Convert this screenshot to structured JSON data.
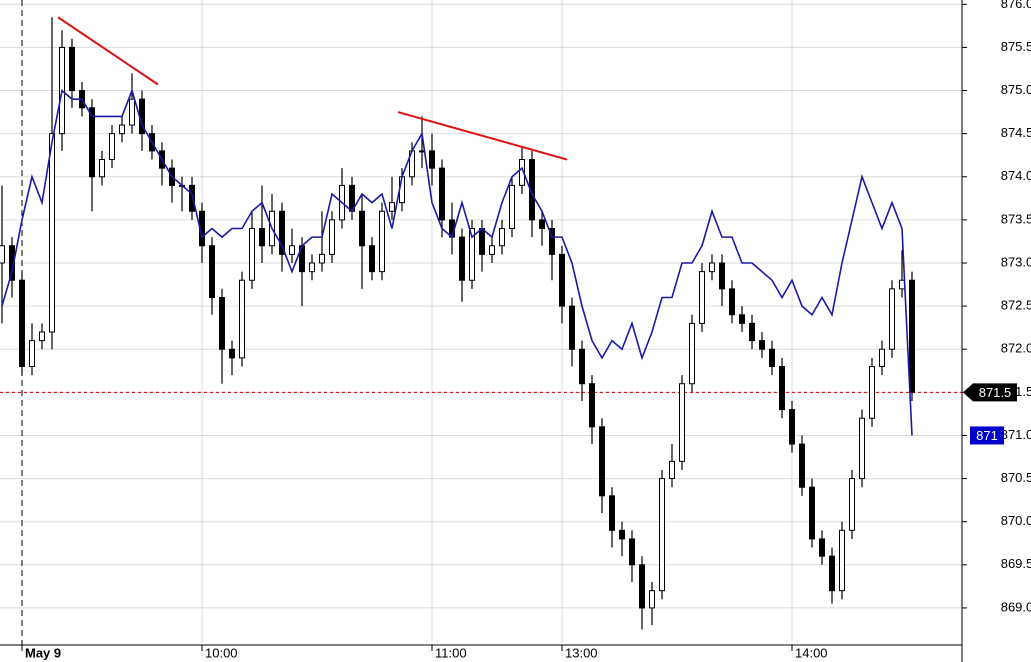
{
  "chart_data": {
    "type": "candlestick",
    "categories": [
      null,
      null,
      "May 9",
      null,
      null,
      null,
      null,
      null,
      null,
      null,
      null,
      null,
      null,
      null,
      null,
      null,
      null,
      null,
      null,
      null,
      "10:00",
      null,
      null,
      null,
      null,
      null,
      null,
      null,
      null,
      null,
      null,
      null,
      null,
      null,
      null,
      null,
      null,
      null,
      null,
      null,
      null,
      null,
      null,
      "11:00",
      null,
      null,
      null,
      null,
      null,
      null,
      null,
      null,
      null,
      null,
      null,
      null,
      "13:00",
      null,
      null,
      null,
      null,
      null,
      null,
      null,
      null,
      null,
      null,
      null,
      null,
      null,
      null,
      null,
      null,
      null,
      null,
      null,
      null,
      null,
      null,
      "14:00",
      null,
      null,
      null,
      null,
      null,
      null,
      null,
      null,
      null,
      null,
      null,
      null
    ],
    "ohlc": {
      "open": [
        873.0,
        873.2,
        872.8,
        871.8,
        872.1,
        872.2,
        874.5,
        875.5,
        875.0,
        874.8,
        874.0,
        874.2,
        874.5,
        874.6,
        874.9,
        874.5,
        874.3,
        874.1,
        873.9,
        873.9,
        873.6,
        873.2,
        872.6,
        872.0,
        871.9,
        872.8,
        873.4,
        873.2,
        873.6,
        873.1,
        873.2,
        872.9,
        873.0,
        873.1,
        873.5,
        873.9,
        873.6,
        873.2,
        872.9,
        873.6,
        873.7,
        874.0,
        874.3,
        874.3,
        874.1,
        873.5,
        873.3,
        872.8,
        873.4,
        873.1,
        873.2,
        873.4,
        873.9,
        874.2,
        873.5,
        873.4,
        873.1,
        872.5,
        872.0,
        871.6,
        871.1,
        870.3,
        869.9,
        869.8,
        869.5,
        869.0,
        869.2,
        870.5,
        870.7,
        871.6,
        872.3,
        872.9,
        873.0,
        872.7,
        872.4,
        872.3,
        872.1,
        872.0,
        871.8,
        871.3,
        870.9,
        870.4,
        869.8,
        869.6,
        869.2,
        869.9,
        870.5,
        871.2,
        871.8,
        872.0,
        872.7,
        872.8
      ],
      "high": [
        873.9,
        873.3,
        872.9,
        872.3,
        872.3,
        875.85,
        875.7,
        875.6,
        875.1,
        874.9,
        874.3,
        874.6,
        874.7,
        875.2,
        875.0,
        874.6,
        874.4,
        874.2,
        874.0,
        874.0,
        873.7,
        873.3,
        872.7,
        872.1,
        872.9,
        873.6,
        873.9,
        873.8,
        873.7,
        873.4,
        873.3,
        873.1,
        873.6,
        873.6,
        874.1,
        874.0,
        873.8,
        873.3,
        873.7,
        874.0,
        874.1,
        874.4,
        874.7,
        874.5,
        874.2,
        873.7,
        873.4,
        873.5,
        873.5,
        873.3,
        873.5,
        874.0,
        874.35,
        874.3,
        873.6,
        873.5,
        873.2,
        872.6,
        872.1,
        871.7,
        871.2,
        870.4,
        870.0,
        869.9,
        869.6,
        869.3,
        870.6,
        870.9,
        871.7,
        872.4,
        873.0,
        873.1,
        873.1,
        872.8,
        872.5,
        872.4,
        872.2,
        872.1,
        871.9,
        871.4,
        871.0,
        870.5,
        869.9,
        869.7,
        870.0,
        870.6,
        871.3,
        871.9,
        872.1,
        872.8,
        873.15,
        872.9
      ],
      "low": [
        872.3,
        872.6,
        871.7,
        871.7,
        872.0,
        872.0,
        874.3,
        874.8,
        874.7,
        873.6,
        873.9,
        874.1,
        874.4,
        874.5,
        874.3,
        874.2,
        873.9,
        873.7,
        873.6,
        873.5,
        873.0,
        872.4,
        871.6,
        871.7,
        871.8,
        872.7,
        873.0,
        873.1,
        872.9,
        873.0,
        872.5,
        872.8,
        872.9,
        873.0,
        873.4,
        873.5,
        872.7,
        872.8,
        872.8,
        873.5,
        873.6,
        873.9,
        874.1,
        873.9,
        873.3,
        873.1,
        872.55,
        872.7,
        872.9,
        873.0,
        873.1,
        873.3,
        873.8,
        873.3,
        873.2,
        872.8,
        872.3,
        871.8,
        871.4,
        870.9,
        870.1,
        869.7,
        869.6,
        869.3,
        868.75,
        868.8,
        869.1,
        870.4,
        870.6,
        871.5,
        872.2,
        872.8,
        872.5,
        872.3,
        872.2,
        872.0,
        871.9,
        871.7,
        871.2,
        870.8,
        870.3,
        869.7,
        869.5,
        869.05,
        869.1,
        869.8,
        870.4,
        871.1,
        871.7,
        871.9,
        872.6,
        871.4
      ],
      "close": [
        873.2,
        872.8,
        871.8,
        872.1,
        872.2,
        874.5,
        875.5,
        875.0,
        874.8,
        874.0,
        874.2,
        874.5,
        874.6,
        874.9,
        874.5,
        874.3,
        874.1,
        873.9,
        873.9,
        873.6,
        873.2,
        872.6,
        872.0,
        871.9,
        872.8,
        873.4,
        873.2,
        873.6,
        873.1,
        873.2,
        872.9,
        873.0,
        873.1,
        873.5,
        873.9,
        873.6,
        873.2,
        872.9,
        873.6,
        873.7,
        874.0,
        874.3,
        874.3,
        874.1,
        873.5,
        873.3,
        872.8,
        873.4,
        873.1,
        873.2,
        873.4,
        873.9,
        874.2,
        873.5,
        873.4,
        873.1,
        872.5,
        872.0,
        871.6,
        871.1,
        870.3,
        869.9,
        869.8,
        869.5,
        869.0,
        869.2,
        870.5,
        870.7,
        871.6,
        872.3,
        872.9,
        873.0,
        872.7,
        872.4,
        872.3,
        872.1,
        872.0,
        871.8,
        871.3,
        870.9,
        870.4,
        869.8,
        869.6,
        869.2,
        869.9,
        870.5,
        871.2,
        871.8,
        872.0,
        872.7,
        872.8,
        871.5
      ],
      "up_color": "#ffffff",
      "down_color": "#000000",
      "outline_color": "#000000"
    },
    "line": {
      "color": "#1a1aa6",
      "values": [
        872.5,
        872.9,
        873.5,
        874.0,
        873.7,
        874.4,
        875.0,
        874.9,
        874.9,
        874.7,
        874.7,
        874.7,
        874.7,
        875.0,
        874.6,
        874.4,
        874.2,
        874.0,
        873.9,
        873.8,
        873.3,
        873.4,
        873.3,
        873.4,
        873.4,
        873.6,
        873.7,
        873.4,
        873.2,
        872.9,
        873.2,
        873.3,
        873.3,
        873.8,
        873.7,
        873.6,
        873.8,
        873.7,
        873.8,
        873.4,
        874.0,
        874.3,
        874.5,
        873.7,
        873.4,
        873.3,
        873.7,
        873.3,
        873.4,
        873.3,
        873.7,
        874.0,
        874.1,
        873.8,
        873.6,
        873.3,
        873.3,
        873.0,
        872.5,
        872.1,
        871.9,
        872.1,
        872.0,
        872.3,
        871.9,
        872.2,
        872.6,
        872.6,
        873.0,
        873.0,
        873.2,
        873.6,
        873.3,
        873.3,
        873.0,
        873.0,
        872.9,
        872.8,
        872.6,
        872.8,
        872.5,
        872.4,
        872.6,
        872.4,
        873.0,
        873.5,
        874.0,
        873.7,
        873.4,
        873.7,
        873.4,
        871.0
      ]
    },
    "trendlines": [
      {
        "x": [
          5.6,
          15.6
        ],
        "y": [
          875.85,
          875.07
        ],
        "color": "#dd1111"
      },
      {
        "x": [
          39.6,
          56.5
        ],
        "y": [
          874.75,
          874.2
        ],
        "color": "#dd1111"
      }
    ],
    "price_labels": [
      {
        "value": 871.5,
        "label": "871.5",
        "color": "#000000",
        "line_color": "#cc0000"
      },
      {
        "value": 871,
        "label": "871",
        "color": "#0000cc"
      }
    ],
    "ylim": [
      868.57,
      876.05
    ],
    "yticks": [
      {
        "value": 869,
        "label": "869.0"
      },
      {
        "value": 869.5,
        "label": "869.5"
      },
      {
        "value": 870,
        "label": "870.0"
      },
      {
        "value": 870.5,
        "label": "870.5"
      },
      {
        "value": 871,
        "label": "871.0"
      },
      {
        "value": 871.5,
        "label": "871.5"
      },
      {
        "value": 872,
        "label": "872.0"
      },
      {
        "value": 872.5,
        "label": "872.5"
      },
      {
        "value": 873,
        "label": "873.0"
      },
      {
        "value": 873.5,
        "label": "873.5"
      },
      {
        "value": 874,
        "label": "874.0"
      },
      {
        "value": 874.5,
        "label": "874.5"
      },
      {
        "value": 875,
        "label": "875.0"
      },
      {
        "value": 875.5,
        "label": "875.5"
      },
      {
        "value": 876,
        "label": "876.0"
      }
    ],
    "grid": true
  }
}
